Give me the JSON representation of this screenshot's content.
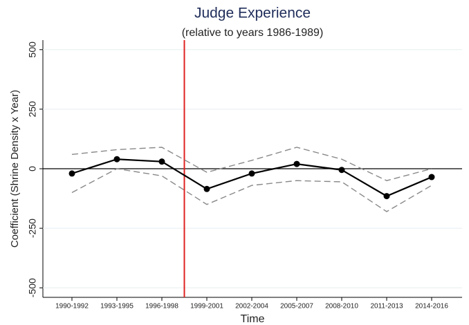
{
  "chart_data": {
    "type": "line",
    "title": "Judge Experience",
    "subtitle": "(relative to years 1986-1989)",
    "x_label": "Time",
    "y_label": "Coefficient (Shrine Density x Year)",
    "categories": [
      "1990-1992",
      "1993-1995",
      "1996-1998",
      "1999-2001",
      "2002-2004",
      "2005-2007",
      "2008-2010",
      "2011-2013",
      "2014-2016"
    ],
    "series": [
      {
        "color": "#888888",
        "dashed": true,
        "markers": false,
        "values": [
          60,
          80,
          90,
          -15,
          35,
          90,
          40,
          -50,
          0
        ]
      },
      {
        "color": "#888888",
        "dashed": true,
        "markers": false,
        "values": [
          -100,
          0,
          -30,
          -150,
          -70,
          -50,
          -55,
          -180,
          -70
        ]
      },
      {
        "color": "#000000",
        "dashed": false,
        "markers": true,
        "values": [
          -20,
          40,
          30,
          -85,
          -20,
          20,
          -5,
          -115,
          -35
        ]
      }
    ],
    "ylim": [
      -540,
      540
    ],
    "yticks": [
      -500,
      -250,
      0,
      250,
      500
    ],
    "grid": true,
    "zero_line": true,
    "vline": {
      "position": 2.5,
      "color": "#e02020"
    }
  }
}
